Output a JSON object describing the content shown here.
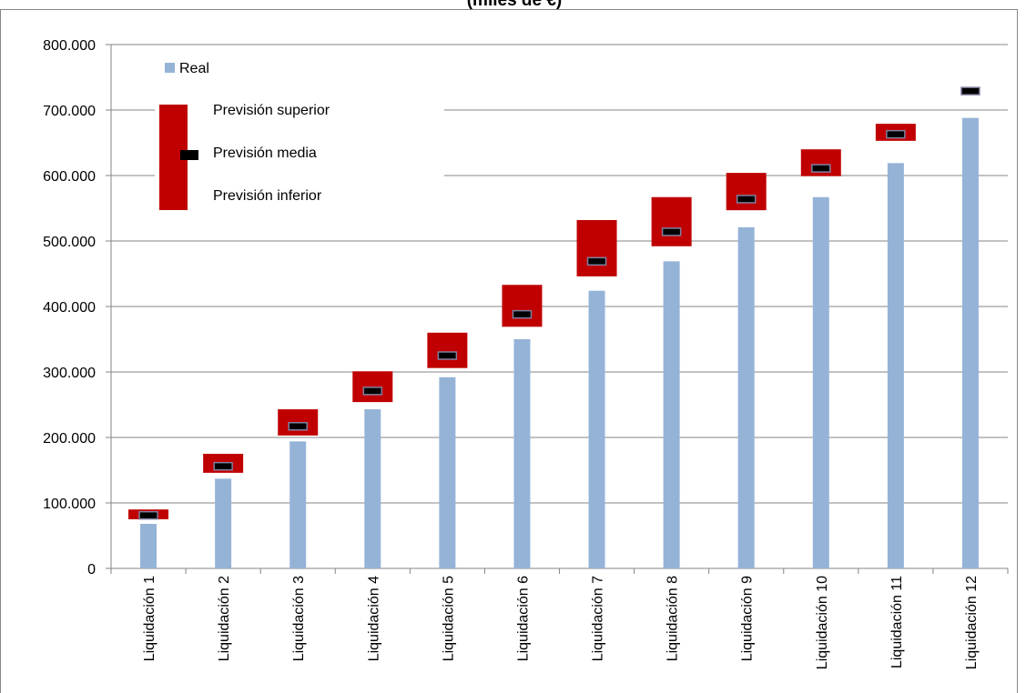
{
  "chart_data": {
    "type": "bar",
    "title": "(miles de €)",
    "categories": [
      "Liquidación 1",
      "Liquidación 2",
      "Liquidación 3",
      "Liquidación 4",
      "Liquidación 5",
      "Liquidación 6",
      "Liquidación 7",
      "Liquidación 8",
      "Liquidación 9",
      "Liquidación 10",
      "Liquidación 11",
      "Liquidación 12"
    ],
    "series": [
      {
        "name": "Real",
        "color": "#95b3d7",
        "values": [
          68000,
          137000,
          194000,
          243000,
          292000,
          350000,
          424000,
          469000,
          521000,
          567000,
          619000,
          688000
        ]
      },
      {
        "name": "Previsión superior",
        "color": "#c00000",
        "values": [
          90000,
          175000,
          243000,
          301000,
          360000,
          433000,
          532000,
          567000,
          604000,
          640000,
          679000,
          null
        ]
      },
      {
        "name": "Previsión media",
        "color": "#000000",
        "values": [
          81000,
          156000,
          217000,
          271000,
          325000,
          388000,
          469000,
          514000,
          564000,
          611000,
          663000,
          729000
        ]
      },
      {
        "name": "Previsión inferior",
        "color": "#c00000",
        "values": [
          75000,
          146000,
          203000,
          254000,
          306000,
          369000,
          446000,
          492000,
          547000,
          599000,
          653000,
          null
        ]
      }
    ],
    "ylim": [
      0,
      800000
    ],
    "yticks": [
      0,
      {
        "value": 100000,
        "label": "100.000"
      },
      {
        "value": 200000,
        "label": "200.000"
      },
      {
        "value": 300000,
        "label": "300.000"
      },
      {
        "value": 400000,
        "label": "400.000"
      },
      {
        "value": 500000,
        "label": "500.000"
      },
      {
        "value": 600000,
        "label": "600.000"
      },
      {
        "value": 700000,
        "label": "700.000"
      },
      {
        "value": 800000,
        "label": "800.000"
      }
    ],
    "grid": true
  }
}
